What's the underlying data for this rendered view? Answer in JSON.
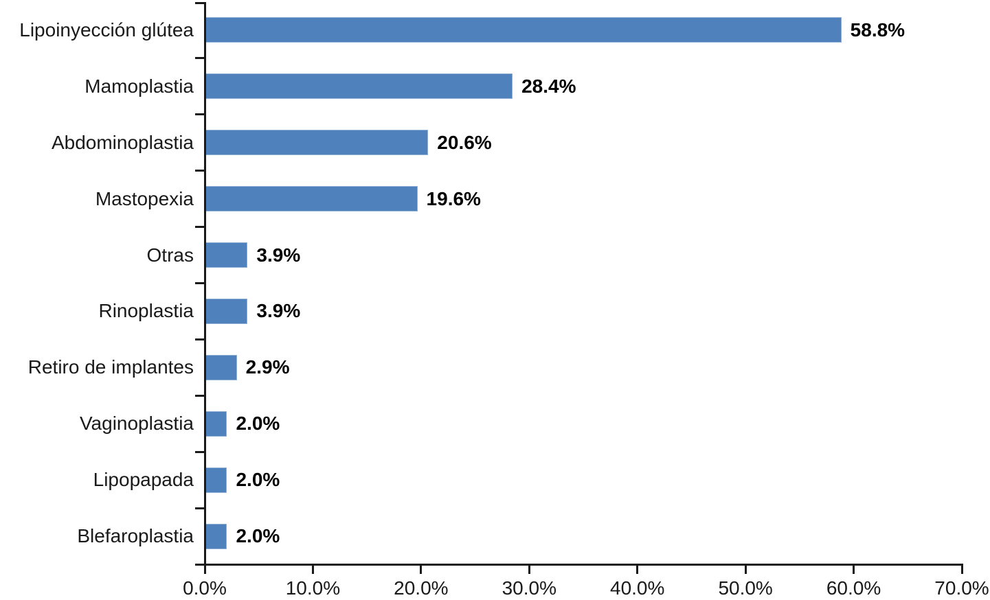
{
  "chart_data": {
    "type": "bar",
    "orientation": "horizontal",
    "title": "",
    "xlabel": "",
    "ylabel": "",
    "categories": [
      "Lipoinyección glútea",
      "Mamoplastia",
      "Abdominoplastia",
      "Mastopexia",
      "Otras",
      "Rinoplastia",
      "Retiro de implantes",
      "Vaginoplastia",
      "Lipopapada",
      "Blefaroplastia"
    ],
    "values": [
      58.8,
      28.4,
      20.6,
      19.6,
      3.9,
      3.9,
      2.9,
      2.0,
      2.0,
      2.0
    ],
    "value_labels": [
      "58.8%",
      "28.4%",
      "20.6%",
      "19.6%",
      "3.9%",
      "3.9%",
      "2.9%",
      "2.0%",
      "2.0%",
      "2.0%"
    ],
    "xlim": [
      0,
      70
    ],
    "x_tick_step": 10,
    "x_tick_labels": [
      "0.0%",
      "10.0%",
      "20.0%",
      "30.0%",
      "40.0%",
      "50.0%",
      "60.0%",
      "70.0%"
    ],
    "grid": false,
    "legend": false,
    "colors": {
      "bar_fill": "#4f81bd",
      "bar_border": "#8fafd4",
      "axis": "#1a1a1a",
      "category_text": "#1a1a1a",
      "value_text": "#000000"
    }
  }
}
